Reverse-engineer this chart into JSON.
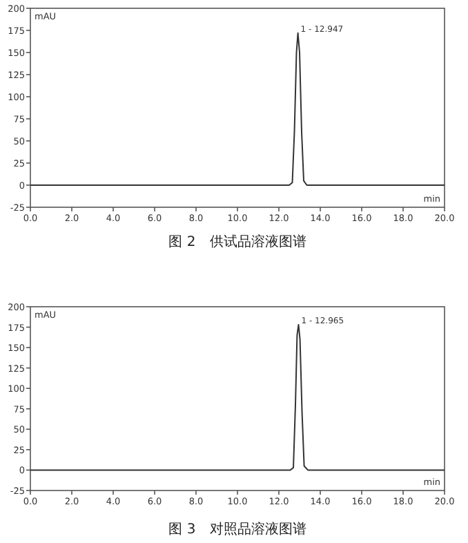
{
  "chart_data": [
    {
      "type": "line",
      "title": "图 2　供试品溶液图谱",
      "xlabel": "min",
      "ylabel": "mAU",
      "xlim": [
        0,
        20
      ],
      "ylim": [
        -25,
        200
      ],
      "xticks": [
        {
          "value": 0,
          "label": "0.0"
        },
        {
          "value": 2,
          "label": "2.0"
        },
        {
          "value": 4,
          "label": "4.0"
        },
        {
          "value": 6,
          "label": "6.0"
        },
        {
          "value": 8,
          "label": "8.0"
        },
        {
          "value": 10,
          "label": "10.0"
        },
        {
          "value": 12,
          "label": "12.0"
        },
        {
          "value": 14,
          "label": "14.0"
        },
        {
          "value": 16,
          "label": "16.0"
        },
        {
          "value": 18,
          "label": "18.0"
        },
        {
          "value": 20,
          "label": "20.0"
        }
      ],
      "yticks": [
        -25,
        0,
        25,
        50,
        75,
        100,
        125,
        150,
        175,
        200
      ],
      "series": [
        {
          "color": "#333333",
          "x": [
            0,
            12.5,
            12.65,
            12.75,
            12.85,
            12.92,
            13.0,
            13.1,
            13.2,
            13.35,
            20
          ],
          "values": [
            0,
            0,
            3,
            60,
            150,
            172,
            150,
            60,
            5,
            0,
            0
          ]
        }
      ],
      "annotations": [
        {
          "text": "1 - 12.947",
          "x": 12.92,
          "y": 172
        }
      ]
    },
    {
      "type": "line",
      "title": "图 3　对照品溶液图谱",
      "xlabel": "min",
      "ylabel": "mAU",
      "xlim": [
        0,
        20
      ],
      "ylim": [
        -25,
        200
      ],
      "xticks": [
        {
          "value": 0,
          "label": "0.0"
        },
        {
          "value": 2,
          "label": "2.0"
        },
        {
          "value": 4,
          "label": "4.0"
        },
        {
          "value": 6,
          "label": "6.0"
        },
        {
          "value": 8,
          "label": "8.0"
        },
        {
          "value": 10,
          "label": "10.0"
        },
        {
          "value": 12,
          "label": "12.0"
        },
        {
          "value": 14,
          "label": "14.0"
        },
        {
          "value": 16,
          "label": "16.0"
        },
        {
          "value": 18,
          "label": "18.0"
        },
        {
          "value": 20,
          "label": "20.0"
        }
      ],
      "yticks": [
        -25,
        0,
        25,
        50,
        75,
        100,
        125,
        150,
        175,
        200
      ],
      "series": [
        {
          "color": "#333333",
          "x": [
            0,
            12.55,
            12.7,
            12.8,
            12.88,
            12.95,
            13.02,
            13.12,
            13.22,
            13.4,
            20
          ],
          "values": [
            0,
            0,
            3,
            80,
            165,
            178,
            160,
            70,
            5,
            0,
            0
          ]
        }
      ],
      "annotations": [
        {
          "text": "1 - 12.965",
          "x": 12.95,
          "y": 178
        }
      ]
    }
  ]
}
